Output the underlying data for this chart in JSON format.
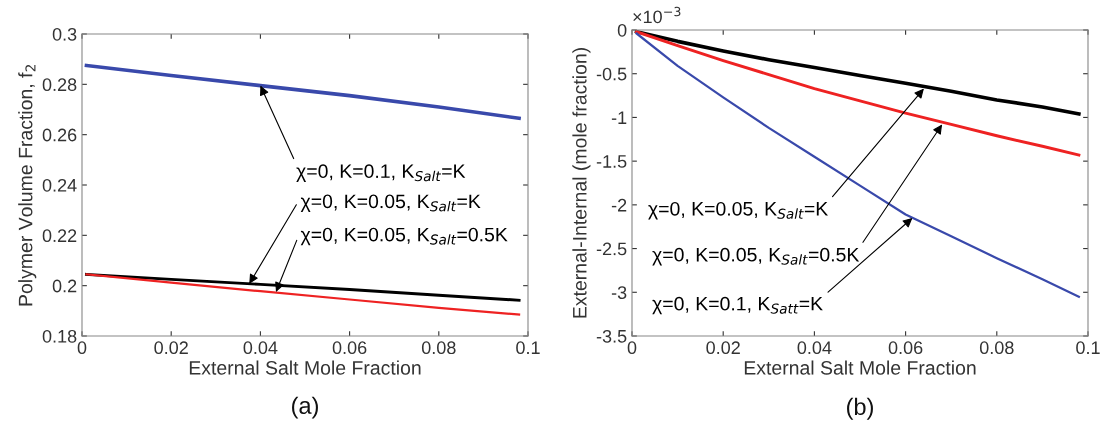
{
  "chart_data": [
    {
      "type": "line",
      "title": "(a)",
      "xlabel": "External Salt Mole Fraction",
      "ylabel": "Polymer Volume Fraction, f$_{2}$",
      "x": [
        0.001,
        0.02,
        0.04,
        0.06,
        0.08,
        0.098
      ],
      "series": [
        {
          "color": "#3949ab",
          "values": [
            0.2875,
            0.2835,
            0.2795,
            0.2755,
            0.271,
            0.2665
          ]
        },
        {
          "color": "#000000",
          "values": [
            0.2045,
            0.2025,
            0.2005,
            0.1985,
            0.1962,
            0.1942
          ]
        },
        {
          "color": "#ee2222",
          "values": [
            0.2045,
            0.2012,
            0.1978,
            0.1945,
            0.1912,
            0.1885
          ]
        }
      ],
      "annotations": [
        {
          "text": "χ=0, K=0.1, K$_{Salt}$=K",
          "x": 0.04,
          "y": 0.2795
        },
        {
          "text": "χ=0, K=0.05, K$_{Salt}$=K",
          "x": 0.0375,
          "y": 0.2007
        },
        {
          "text": "χ=0, K=0.05, K$_{Salt}$=0.5K",
          "x": 0.0435,
          "y": 0.1975
        }
      ],
      "xlim": [
        0,
        0.1
      ],
      "xticks": [
        0,
        0.02,
        0.04,
        0.06,
        0.08,
        0.1
      ],
      "ylim": [
        0.18,
        0.3
      ],
      "yticks": [
        0.18,
        0.2,
        0.22,
        0.24,
        0.26,
        0.28,
        0.3
      ],
      "grid": false,
      "legend": false,
      "marker": "none",
      "line_style": "solid"
    },
    {
      "type": "line",
      "title": "(b)",
      "xlabel": "External Salt Mole Fraction",
      "ylabel": "External-Internal (mole fraction)",
      "x": [
        0.001,
        0.01,
        0.02,
        0.03,
        0.04,
        0.05,
        0.06,
        0.07,
        0.08,
        0.09,
        0.098
      ],
      "series": [
        {
          "color": "#000000",
          "values": [
            -0.02,
            -0.13,
            -0.24,
            -0.34,
            -0.43,
            -0.52,
            -0.61,
            -0.7,
            -0.8,
            -0.88,
            -0.96
          ]
        },
        {
          "color": "#ee2222",
          "values": [
            -0.02,
            -0.18,
            -0.35,
            -0.51,
            -0.67,
            -0.81,
            -0.95,
            -1.08,
            -1.21,
            -1.33,
            -1.43
          ]
        },
        {
          "color": "#3949ab",
          "values": [
            -0.04,
            -0.41,
            -0.77,
            -1.12,
            -1.45,
            -1.78,
            -2.11,
            -2.36,
            -2.61,
            -2.85,
            -3.05
          ]
        }
      ],
      "annotations": [
        "×10$^{−3}$",
        {
          "text": "χ=0, K=0.05, K$_{Salt}$=K",
          "x": 0.064,
          "y": -0.67
        },
        {
          "text": "χ=0, K=0.05, K$_{Salt}$=0.5K",
          "x": 0.068,
          "y": -1.08
        },
        {
          "text": "χ=0, K=0.1, K$_{Satt}$=K",
          "x": 0.0615,
          "y": -2.15
        }
      ],
      "xlim": [
        0,
        0.1
      ],
      "xticks": [
        0,
        0.02,
        0.04,
        0.06,
        0.08,
        0.1
      ],
      "ylim": [
        -3.5,
        0
      ],
      "yticks": [
        -3.5,
        -3,
        -2.5,
        -2,
        -1.5,
        -1,
        -0.5,
        0
      ],
      "grid": false,
      "legend": false,
      "marker": "none",
      "line_style": "solid"
    }
  ]
}
